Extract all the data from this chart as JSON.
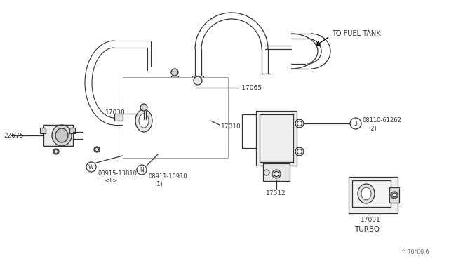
{
  "bg_color": "#ffffff",
  "line_color": "#333333",
  "text_color": "#333333",
  "lw": 0.9,
  "labels": {
    "to_fuel_tank": "TO FUEL TANK",
    "17065": "-17065",
    "17038": "17038",
    "17010": "17010",
    "17012": "17012",
    "22675": "22675",
    "08915_a": "W",
    "08915_b": "08915-13810",
    "08915_c": "<1>",
    "08911_a": "N",
    "08911_b": "08911-10910",
    "08911_c": "(1)",
    "08110_a": "3",
    "08110_b": "08110-61262",
    "08110_c": "(2)",
    "17001": "17001",
    "turbo": "TURBO",
    "revision": "^ 70*00 6"
  }
}
